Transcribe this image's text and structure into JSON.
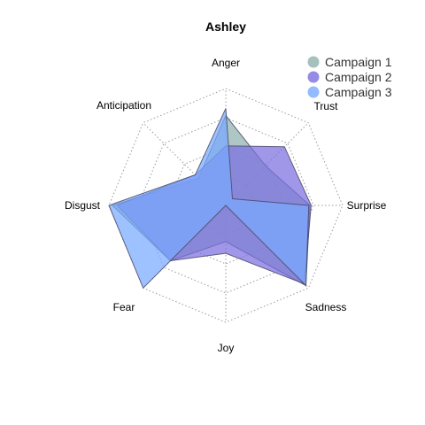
{
  "chart_data": {
    "type": "radar",
    "title": "Ashley",
    "axes": [
      "Anger",
      "Trust",
      "Surprise",
      "Sadness",
      "Joy",
      "Fear",
      "Disgust",
      "Anticipation"
    ],
    "range": [
      0,
      1
    ],
    "grid_levels": 4,
    "grid": true,
    "legend_position": "top-right",
    "series": [
      {
        "name": "Campaign 1",
        "color": "#8fb0ad",
        "values": [
          0.77,
          0.48,
          0.72,
          0.97,
          0.31,
          0.67,
          0.97,
          0.33
        ]
      },
      {
        "name": "Campaign 2",
        "color": "#7b6fe0",
        "values": [
          0.51,
          0.71,
          0.73,
          0.95,
          0.41,
          0.67,
          0.93,
          0.37
        ]
      },
      {
        "name": "Campaign 3",
        "color": "#79aaff",
        "values": [
          0.83,
          0.08,
          0.71,
          0.97,
          0.0,
          1.0,
          1.0,
          0.37
        ]
      }
    ]
  }
}
